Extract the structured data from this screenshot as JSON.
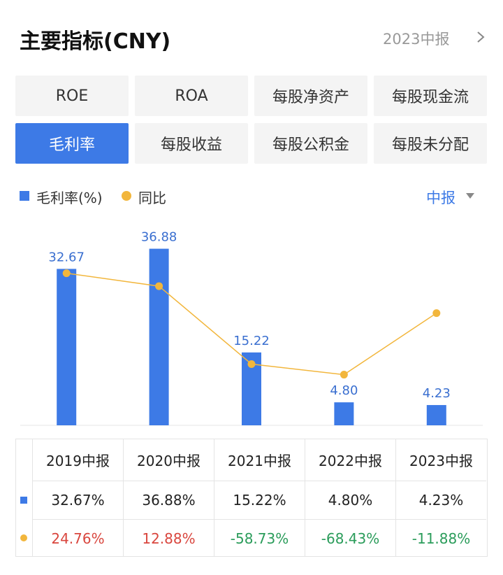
{
  "header": {
    "title": "主要指标(CNY)",
    "period": "2023中报"
  },
  "tabs": {
    "items": [
      "ROE",
      "ROA",
      "每股净资产",
      "每股现金流",
      "毛利率",
      "每股收益",
      "每股公积金",
      "每股未分配"
    ],
    "active": 4
  },
  "period_selector": "中报",
  "chart_data": {
    "type": "bar",
    "categories": [
      "2019中报",
      "2020中报",
      "2021中报",
      "2022中报",
      "2023中报"
    ],
    "series": [
      {
        "name": "毛利率(%)",
        "color": "#3d7ae6",
        "values": [
          32.67,
          36.88,
          15.22,
          4.8,
          4.23
        ],
        "value_labels": [
          "32.67",
          "36.88",
          "15.22",
          "4.80",
          "4.23"
        ]
      },
      {
        "name": "同比",
        "color": "#f2b63c",
        "values": [
          24.76,
          12.88,
          -58.73,
          -68.43,
          -11.88
        ],
        "axis": "y2"
      }
    ],
    "ylim": [
      0,
      45
    ],
    "yticks": [
      0
    ],
    "y2lim": [
      -115,
      83
    ]
  },
  "table": {
    "rows": [
      [
        "32.67%",
        "36.88%",
        "15.22%",
        "4.80%",
        "4.23%"
      ],
      [
        "24.76%",
        "12.88%",
        "-58.73%",
        "-68.43%",
        "-11.88%"
      ]
    ],
    "row_colors": [
      [
        "#222222",
        "#222222",
        "#222222",
        "#222222",
        "#222222"
      ],
      [
        "#d9463e",
        "#d9463e",
        "#2a9c5a",
        "#2a9c5a",
        "#2a9c5a"
      ]
    ]
  }
}
